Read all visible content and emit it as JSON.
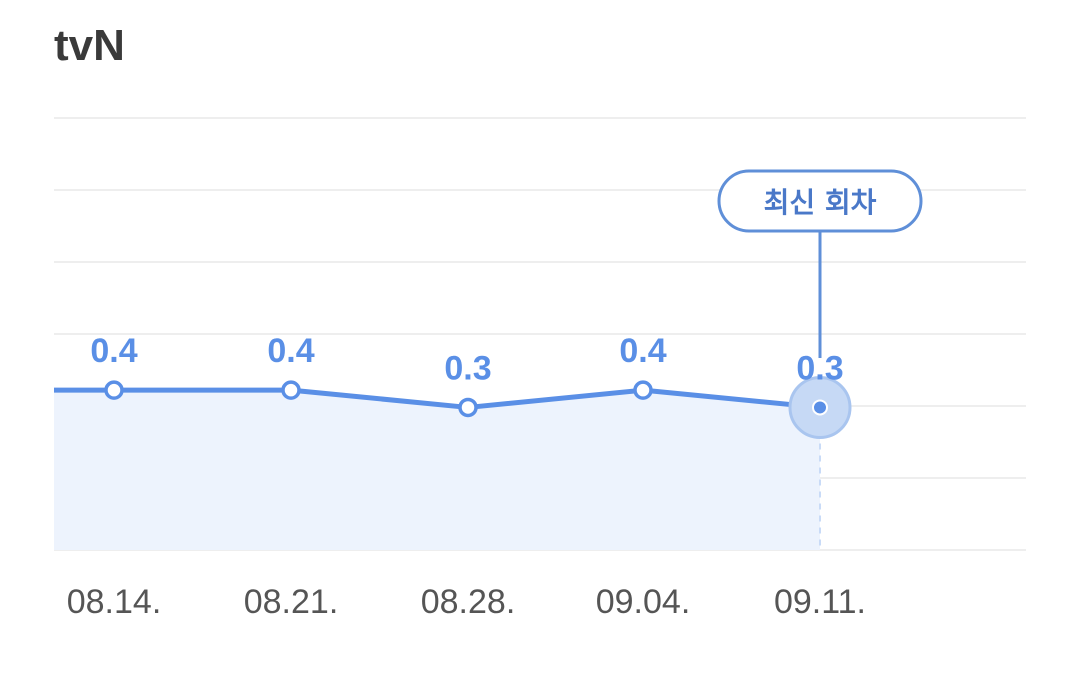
{
  "header": {
    "channel": "tvN"
  },
  "badge": {
    "label": "최신 회차"
  },
  "colors": {
    "accent": "#5a8fe6",
    "fill": "#edf3fd",
    "grid": "#eeeeee",
    "badge_border": "#5f8fd8",
    "badge_text": "#4a78c8",
    "tick": "#555555",
    "title": "#3a3a3a"
  },
  "chart_data": {
    "type": "line",
    "title": "",
    "xlabel": "",
    "ylabel": "",
    "categories": [
      "08.14.",
      "08.21.",
      "08.28.",
      "09.04.",
      "09.11."
    ],
    "series": [
      {
        "values": [
          0.4,
          0.4,
          0.3,
          0.4,
          0.3
        ],
        "plotted": [
          0.37,
          0.37,
          0.33,
          0.37,
          0.33
        ]
      }
    ],
    "incoming_value": 0.37,
    "ylim": [
      0,
      1
    ],
    "grid": true,
    "area_fill": true,
    "highlight_index": 4,
    "legend": "none"
  }
}
